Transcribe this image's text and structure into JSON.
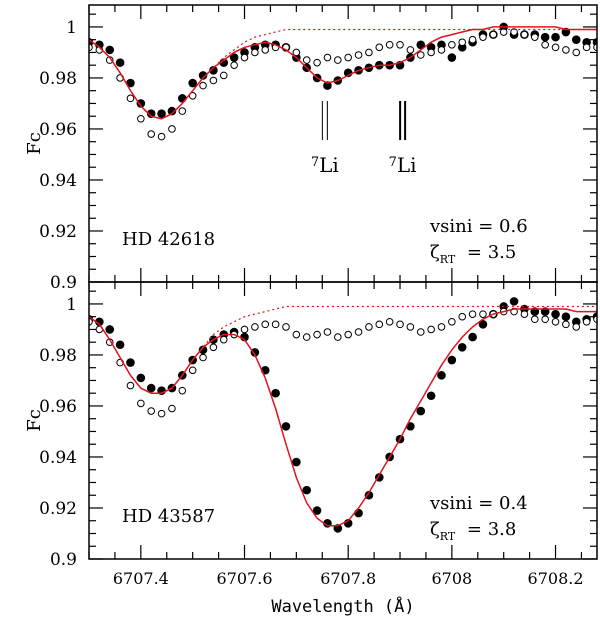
{
  "chart_data": {
    "type": "scatter",
    "xlabel": "Wavelength (Å)",
    "xlim": [
      6707.3,
      6708.28
    ],
    "x_ticks": [
      6707.4,
      6707.6,
      6707.8,
      6708,
      6708.2
    ],
    "x_tick_labels": [
      "6707.4",
      "6707.6",
      "6707.8",
      "6708",
      "6708.2"
    ],
    "x_start": 6707.3,
    "x_step": 0.02,
    "colors": {
      "fit": "#e0141e",
      "points": "#000000"
    },
    "legend": "none",
    "panels": [
      {
        "ylabel": "Fc",
        "ylim": [
          0.9,
          1.0086
        ],
        "y_ticks": [
          0.9,
          0.92,
          0.94,
          0.96,
          0.98,
          1
        ],
        "y_tick_labels": [
          "0.9",
          "0.92",
          "0.94",
          "0.96",
          "0.98",
          "1"
        ],
        "star": "HD 42618",
        "vsini_text": "vsini  =  0.6",
        "zeta_symbol": "ζ",
        "zeta_sub": "RT",
        "zeta_value": "=  3.5",
        "line_markers": [
          {
            "label_sup": "7",
            "label": "Li",
            "wavelength": 6707.755
          },
          {
            "label_sup": "7",
            "label": "Li",
            "wavelength": 6707.905
          }
        ],
        "series": [
          {
            "name": "observed-filled",
            "style": "filled",
            "values": [
              0.994,
              0.993,
              0.991,
              0.986,
              0.978,
              0.97,
              0.966,
              0.966,
              0.967,
              0.972,
              0.978,
              0.981,
              0.983,
              0.986,
              0.988,
              0.99,
              0.992,
              0.993,
              0.993,
              0.992,
              0.988,
              0.984,
              0.98,
              0.977,
              0.979,
              0.982,
              0.983,
              0.984,
              0.985,
              0.985,
              0.985,
              0.988,
              0.993,
              0.992,
              0.993,
              0.988,
              0.992,
              0.994,
              0.997,
              0.997,
              1.0,
              0.997,
              0.997,
              0.997,
              0.996,
              0.996,
              0.998,
              0.995,
              0.994,
              0.994
            ]
          },
          {
            "name": "comparison-open",
            "style": "open",
            "values": [
              0.992,
              0.991,
              0.987,
              0.98,
              0.972,
              0.964,
              0.958,
              0.957,
              0.96,
              0.967,
              0.973,
              0.977,
              0.979,
              0.981,
              0.985,
              0.988,
              0.99,
              0.991,
              0.992,
              0.992,
              0.99,
              0.987,
              0.986,
              0.988,
              0.987,
              0.988,
              0.989,
              0.99,
              0.992,
              0.993,
              0.993,
              0.991,
              0.989,
              0.99,
              0.991,
              0.993,
              0.994,
              0.995,
              0.996,
              0.997,
              0.998,
              0.998,
              0.997,
              0.996,
              0.993,
              0.992,
              0.991,
              0.99,
              0.992,
              0.992
            ]
          },
          {
            "name": "synthetic-fit",
            "style": "solid",
            "values": [
              0.995,
              0.992,
              0.988,
              0.982,
              0.975,
              0.969,
              0.965,
              0.964,
              0.966,
              0.97,
              0.975,
              0.98,
              0.984,
              0.987,
              0.99,
              0.992,
              0.993,
              0.994,
              0.993,
              0.991,
              0.988,
              0.984,
              0.98,
              0.978,
              0.979,
              0.981,
              0.983,
              0.984,
              0.985,
              0.985,
              0.986,
              0.988,
              0.991,
              0.994,
              0.996,
              0.997,
              0.998,
              0.999,
              0.999,
              1.0,
              1.0,
              1.0,
              1.0,
              1.0,
              1.0,
              1.0,
              0.999,
              0.999,
              0.999,
              0.999
            ]
          },
          {
            "name": "synthetic-no-li",
            "style": "dotted",
            "values": [
              0.995,
              0.992,
              0.988,
              0.982,
              0.975,
              0.969,
              0.965,
              0.964,
              0.966,
              0.97,
              0.975,
              0.98,
              0.984,
              0.988,
              0.991,
              0.994,
              0.996,
              0.997,
              0.998,
              0.999,
              0.999,
              0.999,
              0.999,
              0.999,
              0.999,
              0.999,
              0.999,
              0.999,
              0.999,
              0.999,
              0.999,
              0.999,
              0.999,
              0.999,
              0.999,
              0.999,
              0.999,
              0.999,
              0.999,
              0.999,
              0.999,
              0.999,
              0.999,
              0.999,
              0.999,
              0.999,
              0.999,
              0.999,
              0.999,
              0.999
            ]
          }
        ]
      },
      {
        "ylabel": "Fc",
        "ylim": [
          0.9,
          1.0086
        ],
        "y_ticks": [
          0.9,
          0.92,
          0.94,
          0.96,
          0.98,
          1
        ],
        "y_tick_labels": [
          "0.9",
          "0.92",
          "0.94",
          "0.96",
          "0.98",
          "1"
        ],
        "star": "HD 43587",
        "vsini_text": "vsini  =  0.4",
        "zeta_symbol": "ζ",
        "zeta_sub": "RT",
        "zeta_value": "=  3.8",
        "line_markers": [],
        "series": [
          {
            "name": "observed-filled",
            "style": "filled",
            "values": [
              0.994,
              0.993,
              0.99,
              0.984,
              0.977,
              0.971,
              0.967,
              0.966,
              0.967,
              0.972,
              0.978,
              0.982,
              0.986,
              0.988,
              0.989,
              0.987,
              0.981,
              0.974,
              0.965,
              0.952,
              0.938,
              0.927,
              0.919,
              0.914,
              0.912,
              0.914,
              0.918,
              0.925,
              0.932,
              0.94,
              0.947,
              0.952,
              0.958,
              0.964,
              0.972,
              0.978,
              0.983,
              0.987,
              0.992,
              0.996,
              0.999,
              1.001,
              0.998,
              0.997,
              0.997,
              0.996,
              0.995,
              0.993,
              0.994,
              0.995
            ]
          },
          {
            "name": "comparison-open",
            "style": "open",
            "values": [
              0.993,
              0.99,
              0.985,
              0.977,
              0.968,
              0.961,
              0.958,
              0.957,
              0.959,
              0.966,
              0.974,
              0.979,
              0.983,
              0.986,
              0.988,
              0.99,
              0.991,
              0.992,
              0.992,
              0.991,
              0.988,
              0.987,
              0.988,
              0.989,
              0.987,
              0.988,
              0.989,
              0.991,
              0.992,
              0.993,
              0.992,
              0.991,
              0.989,
              0.99,
              0.991,
              0.993,
              0.995,
              0.996,
              0.996,
              0.996,
              0.997,
              0.997,
              0.996,
              0.994,
              0.994,
              0.993,
              0.992,
              0.991,
              0.993,
              0.994
            ]
          },
          {
            "name": "synthetic-fit",
            "style": "solid",
            "values": [
              0.995,
              0.992,
              0.986,
              0.979,
              0.972,
              0.967,
              0.965,
              0.965,
              0.967,
              0.972,
              0.978,
              0.983,
              0.986,
              0.988,
              0.988,
              0.986,
              0.98,
              0.971,
              0.959,
              0.945,
              0.932,
              0.922,
              0.916,
              0.913,
              0.913,
              0.915,
              0.92,
              0.926,
              0.933,
              0.94,
              0.947,
              0.955,
              0.962,
              0.969,
              0.976,
              0.982,
              0.987,
              0.991,
              0.994,
              0.996,
              0.997,
              0.998,
              0.998,
              0.998,
              0.998,
              0.998,
              0.998,
              0.997,
              0.997,
              0.997
            ]
          },
          {
            "name": "synthetic-no-li",
            "style": "dotted",
            "values": [
              0.995,
              0.992,
              0.986,
              0.979,
              0.972,
              0.967,
              0.965,
              0.965,
              0.967,
              0.972,
              0.978,
              0.983,
              0.988,
              0.991,
              0.993,
              0.995,
              0.996,
              0.997,
              0.998,
              0.999,
              0.999,
              0.999,
              0.999,
              0.999,
              0.999,
              0.999,
              0.999,
              0.999,
              0.999,
              0.999,
              0.999,
              0.999,
              0.999,
              0.999,
              0.999,
              0.999,
              0.999,
              0.999,
              0.999,
              0.999,
              0.999,
              0.999,
              0.999,
              0.999,
              0.999,
              0.999,
              0.999,
              0.999,
              0.999,
              0.999
            ]
          }
        ]
      }
    ]
  }
}
